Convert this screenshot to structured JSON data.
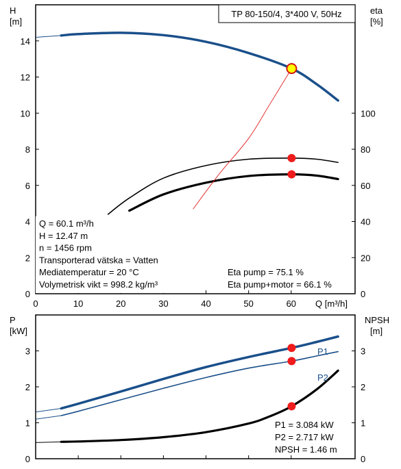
{
  "chart_data": [
    {
      "type": "line",
      "title": "TP 80-150/4, 3*400 V, 50Hz",
      "x_axis": {
        "label": "Q [m³/h]",
        "range": [
          0,
          75
        ],
        "ticks": [
          "0",
          "10",
          "20",
          "30",
          "40",
          "50",
          "60"
        ]
      },
      "y_axis_left": {
        "label": "H",
        "unit": "[m]",
        "range": [
          0,
          16
        ],
        "ticks": [
          "0",
          "2",
          "4",
          "6",
          "8",
          "10",
          "12",
          "14"
        ]
      },
      "y_axis_right": {
        "label": "eta",
        "unit": "[%]",
        "range": [
          0,
          160
        ],
        "ticks": [
          "0",
          "20",
          "40",
          "60",
          "80",
          "100"
        ]
      },
      "grid": false,
      "series": [
        {
          "axis": "left",
          "color": "#1a4f8a",
          "x": [
            0,
            6,
            10,
            20,
            30,
            40,
            50,
            60.1,
            66,
            71
          ],
          "y": [
            14.2,
            14.3,
            14.38,
            14.45,
            14.32,
            13.95,
            13.33,
            12.47,
            11.6,
            10.7
          ]
        },
        {
          "axis": "right",
          "x": [
            17,
            22,
            30,
            40,
            50,
            60.1,
            66,
            71
          ],
          "y": [
            44,
            53,
            64,
            71,
            74.5,
            75.1,
            74.5,
            72.7
          ]
        },
        {
          "axis": "right",
          "x": [
            22,
            30,
            40,
            50,
            60.1,
            66,
            71
          ],
          "y": [
            46,
            55,
            61.5,
            65.2,
            66.1,
            65.4,
            63.5
          ]
        },
        {
          "axis": "left",
          "color": "#e02020",
          "x": [
            37,
            43,
            50,
            55,
            60.1
          ],
          "y": [
            4.7,
            6.6,
            8.6,
            10.5,
            12.47
          ]
        }
      ],
      "operating_points": [
        {
          "axis": "left",
          "x": 60.1,
          "y": 12.47
        },
        {
          "axis": "right",
          "x": 60.1,
          "y": 75.1
        },
        {
          "axis": "right",
          "x": 60.1,
          "y": 66.1
        }
      ],
      "annotations_left": [
        "Q = 60.1 m³/h",
        "H = 12.47 m",
        "n = 1456 rpm",
        "Transporterad vätska = Vatten",
        "Mediatemperatur = 20 °C",
        "Volymetrisk vikt = 998.2 kg/m³"
      ],
      "annotations_right": [
        "Eta pump = 75.1 %",
        "Eta pump+motor = 66.1 %"
      ]
    },
    {
      "type": "line",
      "x_axis": {
        "range": [
          0,
          75
        ]
      },
      "y_axis_left": {
        "label": "P",
        "unit": "[kW]",
        "range": [
          0,
          4
        ],
        "ticks": [
          "0",
          "1",
          "2",
          "3"
        ]
      },
      "y_axis_right": {
        "label": "NPSH",
        "unit": "[m]",
        "range": [
          0,
          4
        ],
        "ticks": [
          "0",
          "1",
          "2",
          "3"
        ]
      },
      "grid": false,
      "series": [
        {
          "name": "P1",
          "axis": "left",
          "color": "#1a4f8a",
          "x": [
            0,
            6,
            10,
            20,
            30,
            40,
            50,
            60.1,
            66,
            71
          ],
          "y": [
            1.3,
            1.4,
            1.53,
            1.87,
            2.22,
            2.55,
            2.83,
            3.084,
            3.25,
            3.4
          ]
        },
        {
          "name": "P2",
          "axis": "left",
          "color": "#1a4f8a",
          "x": [
            0,
            6,
            10,
            20,
            30,
            40,
            50,
            60.1,
            66,
            71
          ],
          "y": [
            1.1,
            1.2,
            1.32,
            1.64,
            1.96,
            2.26,
            2.52,
            2.717,
            2.86,
            2.98
          ]
        },
        {
          "name": "NPSH",
          "axis": "right",
          "color": "#000000",
          "x": [
            0,
            6,
            10,
            20,
            30,
            40,
            50,
            55,
            60.1,
            66,
            71
          ],
          "y": [
            0.45,
            0.47,
            0.48,
            0.52,
            0.6,
            0.74,
            0.98,
            1.18,
            1.46,
            1.93,
            2.45
          ]
        }
      ],
      "operating_points": [
        {
          "axis": "left",
          "x": 60.1,
          "y": 3.084
        },
        {
          "axis": "left",
          "x": 60.1,
          "y": 2.717
        },
        {
          "axis": "right",
          "x": 60.1,
          "y": 1.46
        }
      ],
      "annotations": [
        "P1 = 3.084 kW",
        "P2 = 2.717 kW",
        "NPSH = 1.46 m"
      ]
    }
  ]
}
